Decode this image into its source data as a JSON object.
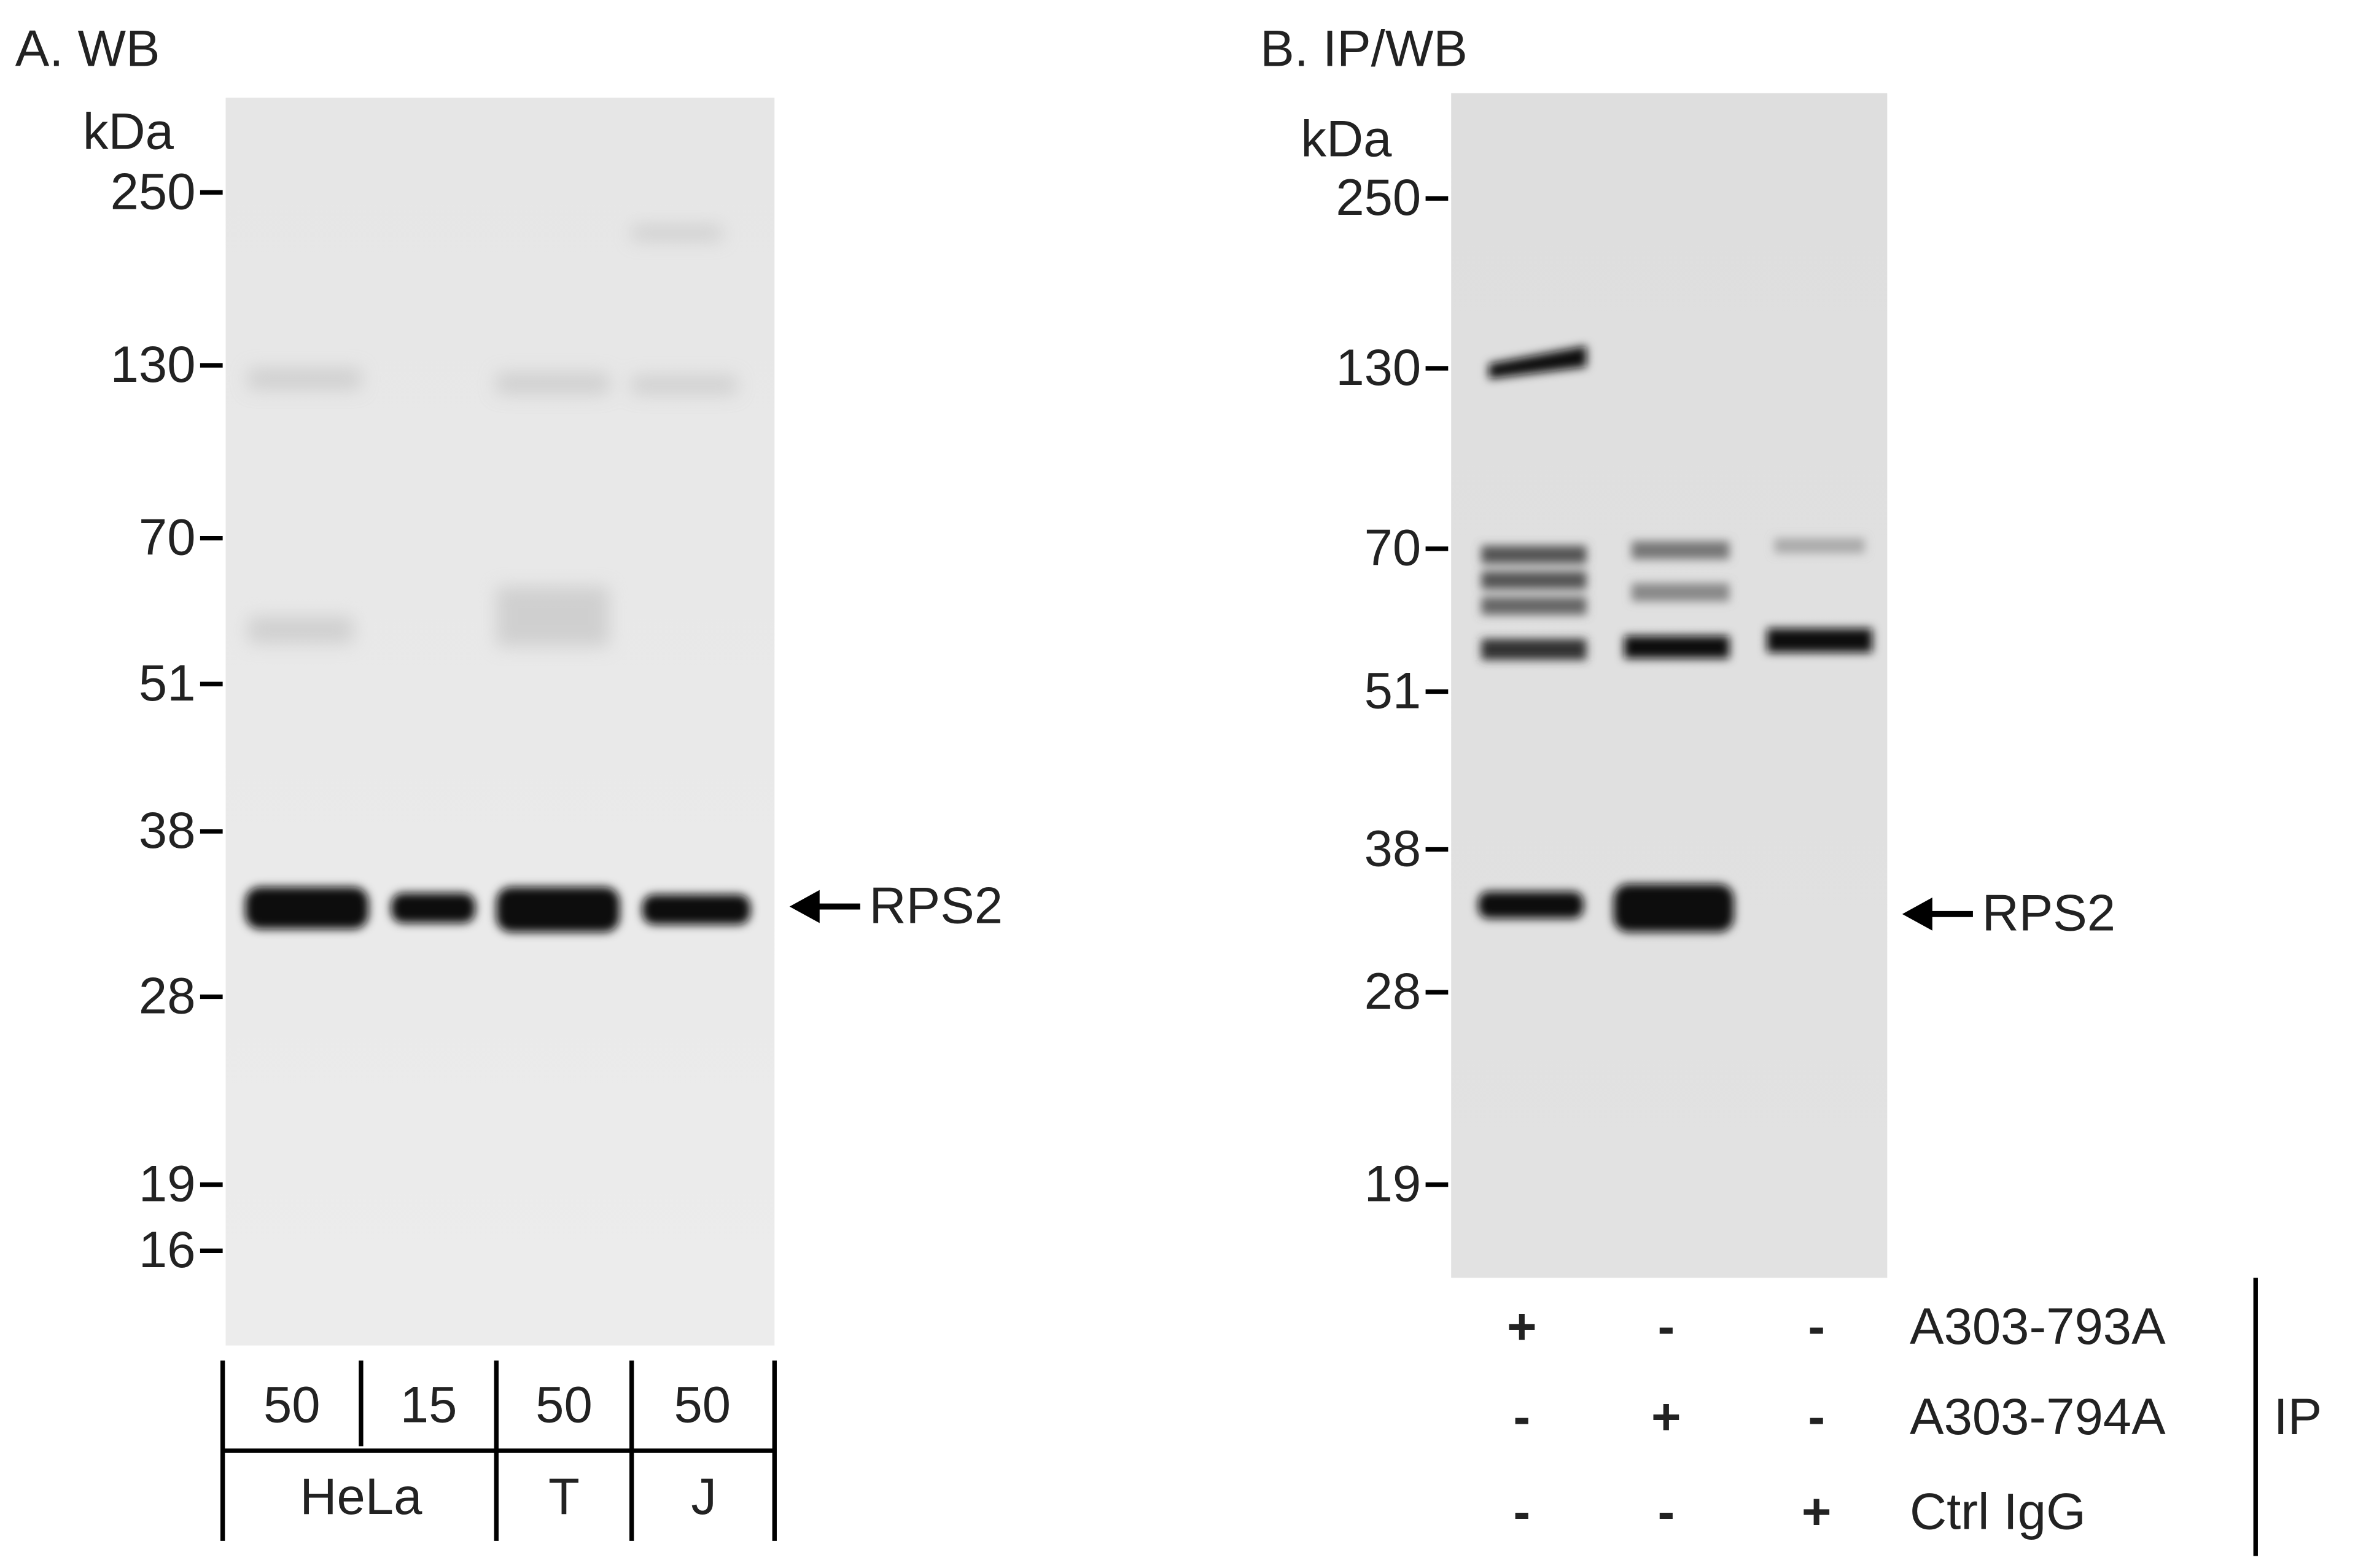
{
  "panel_a": {
    "title": "A. WB",
    "unit": "kDa",
    "markers": [
      "250",
      "130",
      "70",
      "51",
      "38",
      "28",
      "19",
      "16"
    ],
    "band_label": "RPS2",
    "lane_amounts": [
      "50",
      "15",
      "50",
      "50"
    ],
    "cell_lines": [
      "HeLa",
      "T",
      "J"
    ]
  },
  "panel_b": {
    "title": "B. IP/WB",
    "unit": "kDa",
    "markers": [
      "250",
      "130",
      "70",
      "51",
      "38",
      "28",
      "19"
    ],
    "band_label": "RPS2",
    "ip_rows": [
      {
        "label": "A303-793A",
        "marks": [
          "+",
          "-",
          "-"
        ]
      },
      {
        "label": "A303-794A",
        "marks": [
          "-",
          "+",
          "-"
        ]
      },
      {
        "label": "Ctrl IgG",
        "marks": [
          "-",
          "-",
          "+"
        ]
      }
    ],
    "ip_label": "IP"
  }
}
